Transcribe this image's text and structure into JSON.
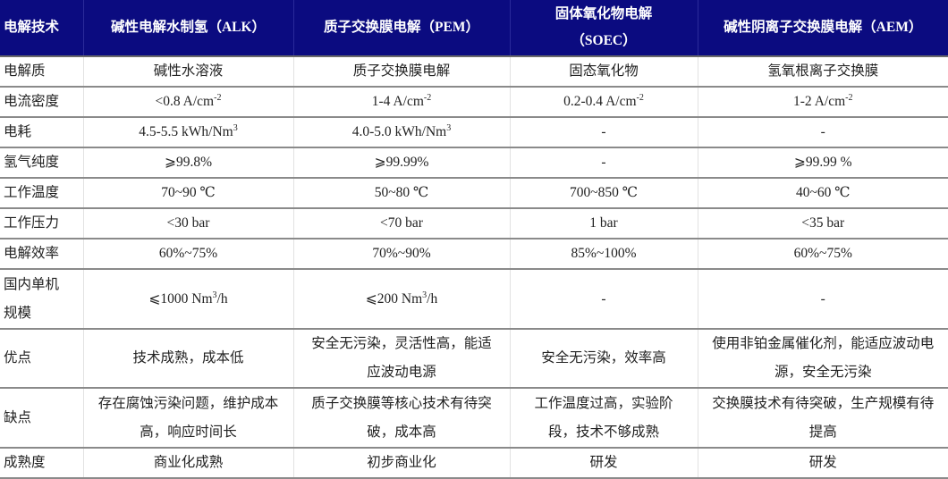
{
  "header": [
    "电解技术",
    "碱性电解水制氢（ALK）",
    "质子交换膜电解（PEM）",
    "固体氧化物电解（SOEC）",
    "碱性阴离子交换膜电解（AEM）"
  ],
  "rows": [
    {
      "label": "电解质",
      "cells": [
        {
          "t": "碱性水溶液"
        },
        {
          "t": "质子交换膜电解"
        },
        {
          "t": "固态氧化物"
        },
        {
          "t": "氢氧根离子交换膜"
        }
      ]
    },
    {
      "label": "电流密度",
      "cells": [
        {
          "t": "<0.8 A/cm",
          "s": "-2"
        },
        {
          "t": "1-4 A/cm",
          "s": "-2"
        },
        {
          "t": "0.2-0.4 A/cm",
          "s": "-2"
        },
        {
          "t": "1-2 A/cm",
          "s": "-2"
        }
      ]
    },
    {
      "label": "电耗",
      "cells": [
        {
          "t": "4.5-5.5 kWh/Nm",
          "s": "3"
        },
        {
          "t": "4.0-5.0 kWh/Nm",
          "s": "3"
        },
        {
          "t": "-"
        },
        {
          "t": "-"
        }
      ]
    },
    {
      "label": "氢气纯度",
      "cells": [
        {
          "t": "⩾99.8%"
        },
        {
          "t": "⩾99.99%"
        },
        {
          "t": "-"
        },
        {
          "t": "⩾99.99 %"
        }
      ]
    },
    {
      "label": "工作温度",
      "cells": [
        {
          "t": "70~90 ℃"
        },
        {
          "t": "50~80 ℃"
        },
        {
          "t": "700~850 ℃"
        },
        {
          "t": "40~60 ℃"
        }
      ]
    },
    {
      "label": "工作压力",
      "cells": [
        {
          "t": "<30 bar"
        },
        {
          "t": "<70 bar"
        },
        {
          "t": "1 bar"
        },
        {
          "t": "<35 bar"
        }
      ]
    },
    {
      "label": "电解效率",
      "cells": [
        {
          "t": "60%~75%"
        },
        {
          "t": "70%~90%"
        },
        {
          "t": "85%~100%"
        },
        {
          "t": "60%~75%"
        }
      ]
    },
    {
      "label": "国内单机规模",
      "cells": [
        {
          "t": "⩽1000 Nm",
          "s": "3",
          "a": "/h"
        },
        {
          "t": "⩽200 Nm",
          "s": "3",
          "a": "/h"
        },
        {
          "t": "-"
        },
        {
          "t": "-"
        }
      ]
    },
    {
      "label": "优点",
      "cells": [
        {
          "t": "技术成熟，成本低"
        },
        {
          "t": "安全无污染，灵活性高，能适应波动电源"
        },
        {
          "t": "安全无污染，效率高"
        },
        {
          "t": "使用非铂金属催化剂，能适应波动电源，安全无污染"
        }
      ]
    },
    {
      "label": "缺点",
      "cells": [
        {
          "t": "存在腐蚀污染问题，维护成本高，响应时间长"
        },
        {
          "t": "质子交换膜等核心技术有待突破，成本高"
        },
        {
          "t": "工作温度过高，实验阶段，技术不够成熟"
        },
        {
          "t": "交换膜技术有待突破，生产规模有待提高"
        }
      ]
    },
    {
      "label": "成熟度",
      "cells": [
        {
          "t": "商业化成熟"
        },
        {
          "t": "初步商业化"
        },
        {
          "t": "研发"
        },
        {
          "t": "研发"
        }
      ]
    }
  ]
}
